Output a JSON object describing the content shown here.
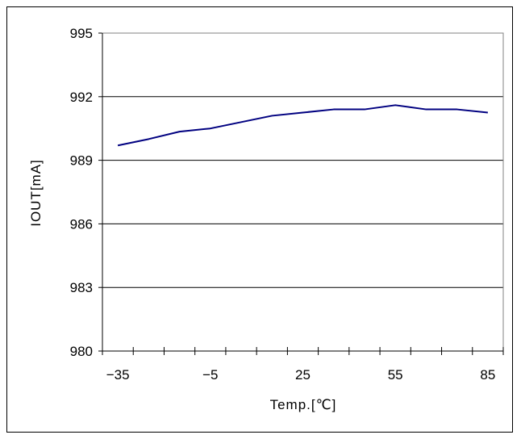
{
  "chart_data": {
    "type": "line",
    "title": "",
    "xlabel": "Temp.[℃]",
    "ylabel": "IOUT[mA]",
    "xlim": [
      -40,
      90
    ],
    "ylim": [
      980,
      995
    ],
    "x_ticks": [
      -35,
      -5,
      25,
      55,
      85
    ],
    "x_tick_labels": [
      "−35",
      "−5",
      "25",
      "55",
      "85"
    ],
    "y_ticks": [
      980,
      983,
      986,
      989,
      992,
      995
    ],
    "y_tick_labels": [
      "980",
      "983",
      "986",
      "989",
      "992",
      "995"
    ],
    "grid": "horizontal",
    "legend": "none",
    "series": [
      {
        "color": "#000080",
        "x": [
          -35,
          -25,
          -15,
          -5,
          5,
          15,
          25,
          35,
          45,
          55,
          65,
          75,
          85
        ],
        "y": [
          989.7,
          990.0,
          990.35,
          990.5,
          990.8,
          991.1,
          991.25,
          991.4,
          991.4,
          991.6,
          991.4,
          991.4,
          991.25
        ]
      }
    ]
  }
}
